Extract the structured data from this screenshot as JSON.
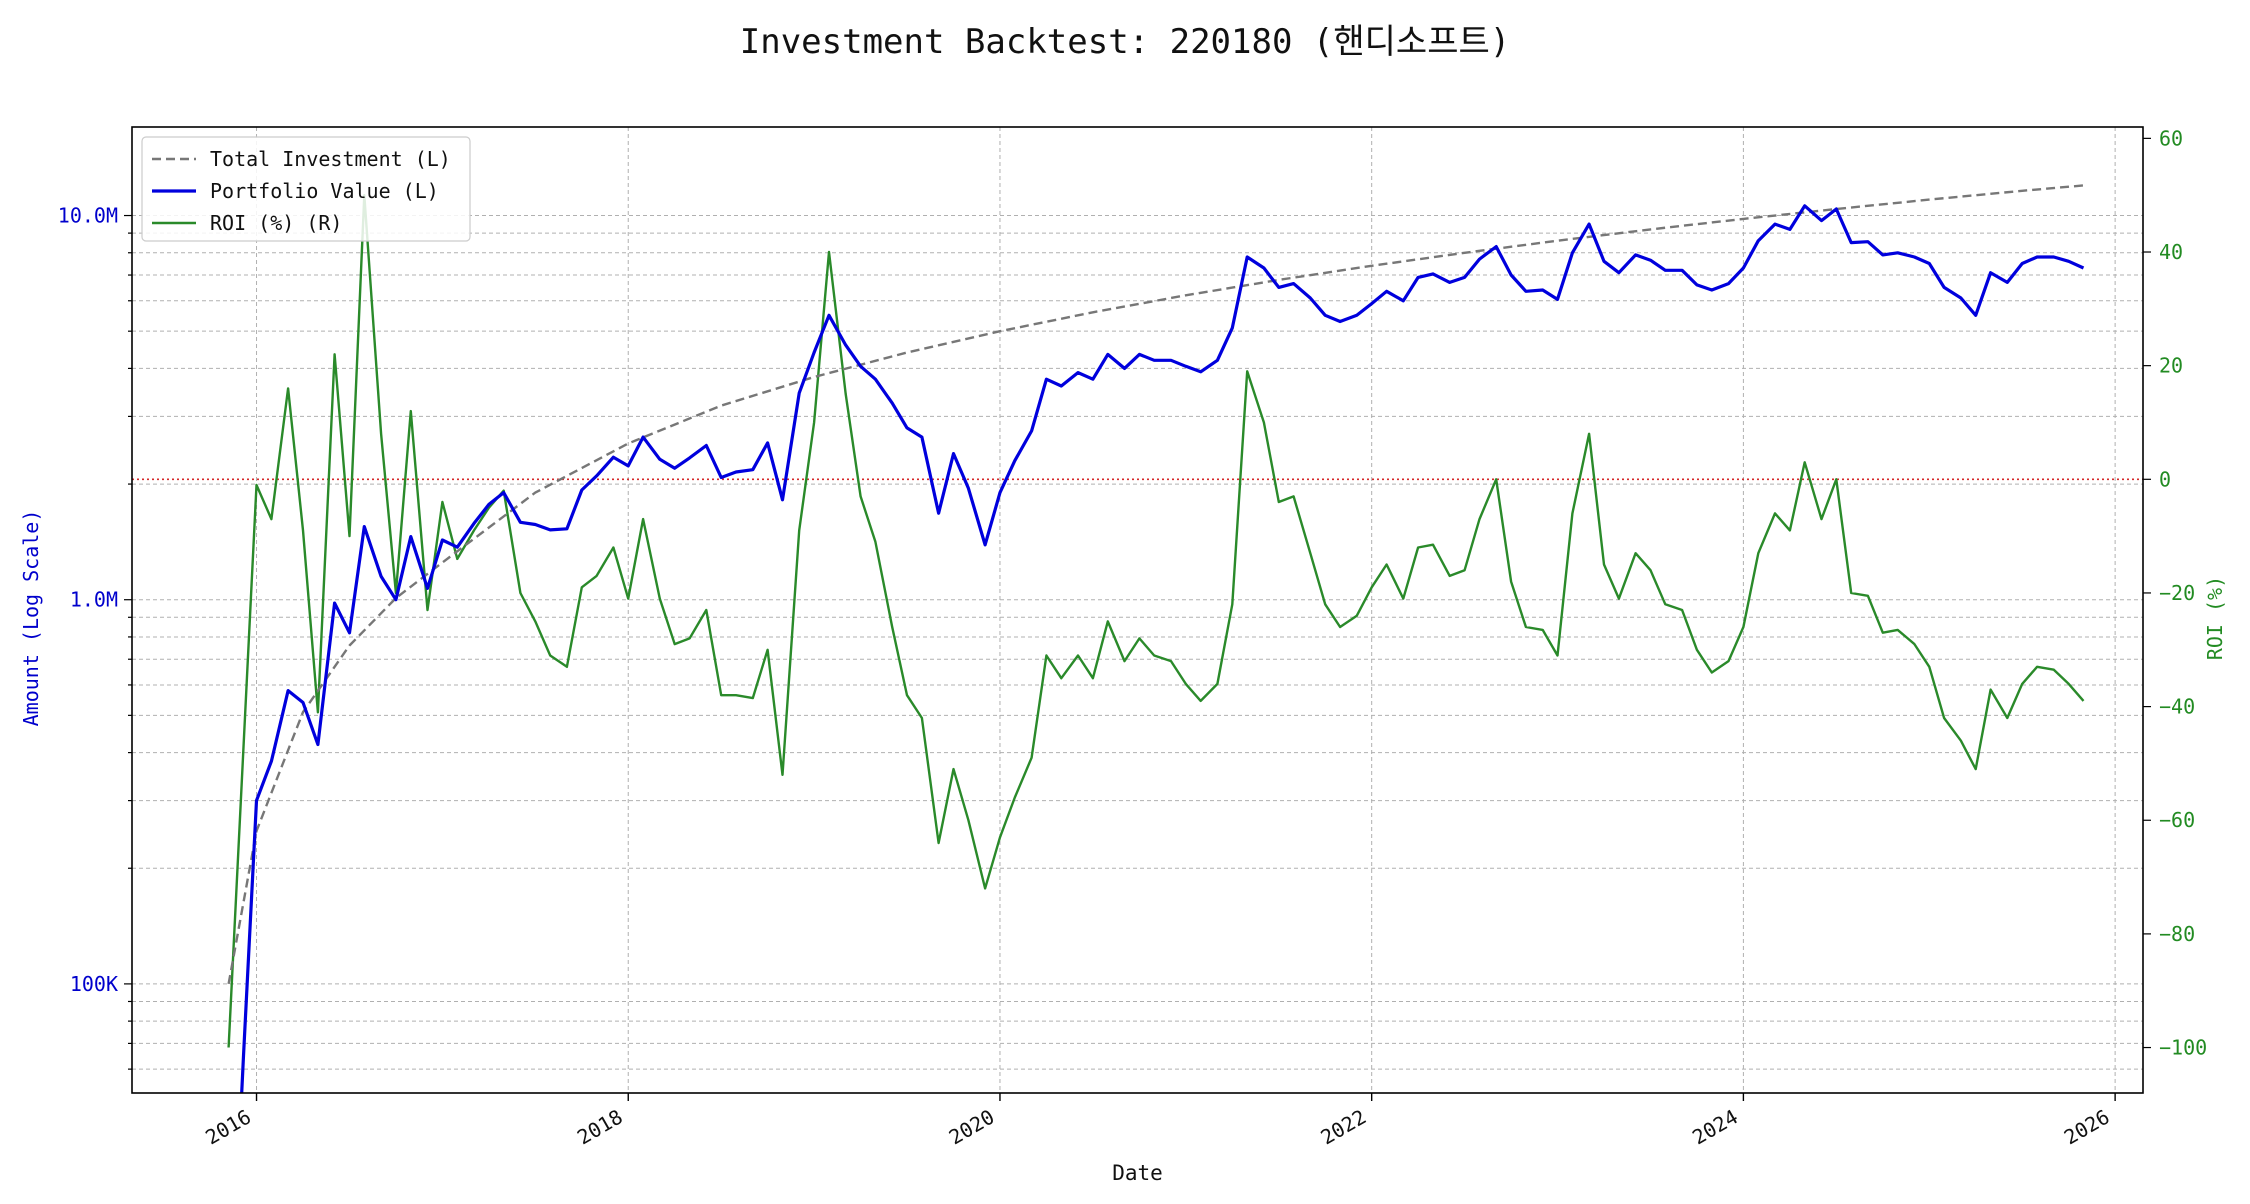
{
  "chart_data": {
    "type": "line",
    "title": "Investment Backtest: 220180 (핸디소프트)",
    "xlabel": "Date",
    "ylabel_left": "Amount (Log Scale)",
    "ylabel_right": "ROI (%)",
    "x_range": [
      2015.33,
      2026.15
    ],
    "xticks": [
      2016,
      2018,
      2020,
      2022,
      2024,
      2026
    ],
    "xtick_labels": [
      "2016",
      "2018",
      "2020",
      "2022",
      "2024",
      "2026"
    ],
    "left_axis": {
      "scale": "log",
      "ylim": [
        52000,
        17000000
      ],
      "ticks": [
        100000,
        1000000,
        10000000
      ],
      "tick_labels": [
        "100K",
        "1.0M",
        "10.0M"
      ],
      "color": "#0000cc"
    },
    "right_axis": {
      "scale": "linear",
      "ylim": [
        -108,
        62
      ],
      "ticks": [
        -100,
        -80,
        -60,
        -40,
        -20,
        0,
        20,
        40,
        60
      ],
      "tick_labels": [
        "−100",
        "−80",
        "−60",
        "−40",
        "−20",
        "0",
        "20",
        "40",
        "60"
      ],
      "color": "#228b22"
    },
    "grid": true,
    "legend_position": "top-left",
    "reference_line": {
      "axis": "right",
      "value": 0,
      "color": "#d62728",
      "style": "dotted"
    },
    "series": [
      {
        "name": "Total Investment (L)",
        "axis": "left",
        "color": "#777777",
        "style": "dashed",
        "x": [
          2015.85,
          2016.0,
          2016.25,
          2016.5,
          2016.75,
          2017.0,
          2017.5,
          2018.0,
          2018.5,
          2019.0,
          2019.5,
          2020.0,
          2020.5,
          2021.0,
          2021.5,
          2022.0,
          2022.5,
          2023.0,
          2023.5,
          2024.0,
          2024.5,
          2025.0,
          2025.5,
          2025.85
        ],
        "y": [
          100000,
          250000,
          510000,
          760000,
          1010000,
          1250000,
          1900000,
          2550000,
          3200000,
          3800000,
          4400000,
          5000000,
          5600000,
          6200000,
          6800000,
          7400000,
          8000000,
          8600000,
          9200000,
          9800000,
          10400000,
          11000000,
          11600000,
          12000000
        ]
      },
      {
        "name": "Portfolio Value (L)",
        "axis": "left",
        "color": "#0000dd",
        "style": "solid",
        "x": [
          2015.92,
          2015.93,
          2016.0,
          2016.08,
          2016.17,
          2016.25,
          2016.33,
          2016.42,
          2016.5,
          2016.58,
          2016.67,
          2016.75,
          2016.83,
          2016.92,
          2017.0,
          2017.08,
          2017.17,
          2017.25,
          2017.33,
          2017.42,
          2017.5,
          2017.58,
          2017.67,
          2017.75,
          2017.83,
          2017.92,
          2018.0,
          2018.08,
          2018.17,
          2018.25,
          2018.33,
          2018.42,
          2018.5,
          2018.58,
          2018.67,
          2018.75,
          2018.83,
          2018.92,
          2019.0,
          2019.08,
          2019.17,
          2019.25,
          2019.33,
          2019.42,
          2019.5,
          2019.58,
          2019.67,
          2019.75,
          2019.83,
          2019.92,
          2020.0,
          2020.08,
          2020.17,
          2020.25,
          2020.33,
          2020.42,
          2020.5,
          2020.58,
          2020.67,
          2020.75,
          2020.83,
          2020.92,
          2021.0,
          2021.08,
          2021.17,
          2021.25,
          2021.33,
          2021.42,
          2021.5,
          2021.58,
          2021.67,
          2021.75,
          2021.83,
          2021.92,
          2022.0,
          2022.08,
          2022.17,
          2022.25,
          2022.33,
          2022.42,
          2022.5,
          2022.58,
          2022.67,
          2022.75,
          2022.83,
          2022.92,
          2023.0,
          2023.08,
          2023.17,
          2023.25,
          2023.33,
          2023.42,
          2023.5,
          2023.58,
          2023.67,
          2023.75,
          2023.83,
          2023.92,
          2024.0,
          2024.08,
          2024.17,
          2024.25,
          2024.33,
          2024.42,
          2024.5,
          2024.58,
          2024.67,
          2024.75,
          2024.83,
          2024.92,
          2025.0,
          2025.08,
          2025.17,
          2025.25,
          2025.33,
          2025.42,
          2025.5,
          2025.58,
          2025.67,
          2025.75,
          2025.83
        ],
        "y": [
          52000,
          65000,
          300000,
          380000,
          580000,
          540000,
          420000,
          980000,
          820000,
          1550000,
          1150000,
          1000000,
          1460000,
          1070000,
          1430000,
          1370000,
          1580000,
          1770000,
          1900000,
          1590000,
          1570000,
          1520000,
          1530000,
          1930000,
          2100000,
          2350000,
          2230000,
          2650000,
          2320000,
          2200000,
          2340000,
          2520000,
          2080000,
          2150000,
          2180000,
          2560000,
          1820000,
          3450000,
          4400000,
          5500000,
          4600000,
          4050000,
          3750000,
          3250000,
          2800000,
          2650000,
          1680000,
          2400000,
          1950000,
          1390000,
          1900000,
          2300000,
          2750000,
          3750000,
          3600000,
          3900000,
          3750000,
          4350000,
          4000000,
          4350000,
          4200000,
          4200000,
          4050000,
          3920000,
          4200000,
          5100000,
          7800000,
          7300000,
          6500000,
          6650000,
          6100000,
          5500000,
          5300000,
          5500000,
          5900000,
          6350000,
          6000000,
          6900000,
          7050000,
          6700000,
          6900000,
          7700000,
          8300000,
          7000000,
          6350000,
          6400000,
          6050000,
          8000000,
          9500000,
          7600000,
          7100000,
          7900000,
          7650000,
          7200000,
          7200000,
          6600000,
          6400000,
          6650000,
          7300000,
          8600000,
          9500000,
          9200000,
          10600000,
          9700000,
          10400000,
          8500000,
          8550000,
          7900000,
          8000000,
          7800000,
          7500000,
          6500000,
          6100000,
          5500000,
          7100000,
          6700000,
          7500000,
          7800000,
          7800000,
          7600000,
          7300000
        ]
      },
      {
        "name": "ROI (%) (R)",
        "axis": "right",
        "color": "#2a8a2a",
        "style": "solid",
        "x": [
          2015.85,
          2016.0,
          2016.08,
          2016.17,
          2016.25,
          2016.33,
          2016.42,
          2016.5,
          2016.58,
          2016.67,
          2016.75,
          2016.83,
          2016.92,
          2017.0,
          2017.08,
          2017.17,
          2017.25,
          2017.33,
          2017.42,
          2017.5,
          2017.58,
          2017.67,
          2017.75,
          2017.83,
          2017.92,
          2018.0,
          2018.08,
          2018.17,
          2018.25,
          2018.33,
          2018.42,
          2018.5,
          2018.58,
          2018.67,
          2018.75,
          2018.83,
          2018.92,
          2019.0,
          2019.08,
          2019.17,
          2019.25,
          2019.33,
          2019.42,
          2019.5,
          2019.58,
          2019.67,
          2019.75,
          2019.83,
          2019.92,
          2020.0,
          2020.08,
          2020.17,
          2020.25,
          2020.33,
          2020.42,
          2020.5,
          2020.58,
          2020.67,
          2020.75,
          2020.83,
          2020.92,
          2021.0,
          2021.08,
          2021.17,
          2021.25,
          2021.33,
          2021.42,
          2021.5,
          2021.58,
          2021.67,
          2021.75,
          2021.83,
          2021.92,
          2022.0,
          2022.08,
          2022.17,
          2022.25,
          2022.33,
          2022.42,
          2022.5,
          2022.58,
          2022.67,
          2022.75,
          2022.83,
          2022.92,
          2023.0,
          2023.08,
          2023.17,
          2023.25,
          2023.33,
          2023.42,
          2023.5,
          2023.58,
          2023.67,
          2023.75,
          2023.83,
          2023.92,
          2024.0,
          2024.08,
          2024.17,
          2024.25,
          2024.33,
          2024.42,
          2024.5,
          2024.58,
          2024.67,
          2024.75,
          2024.83,
          2024.92,
          2025.0,
          2025.08,
          2025.17,
          2025.25,
          2025.33,
          2025.42,
          2025.5,
          2025.58,
          2025.67,
          2025.75,
          2025.83
        ],
        "y": [
          -100,
          -1,
          -7,
          16,
          -9,
          -41,
          22,
          -10,
          50,
          8,
          -20,
          12,
          -23,
          -4,
          -14,
          -9,
          -5,
          -2,
          -20,
          -25,
          -31,
          -33,
          -19,
          -17,
          -12,
          -21,
          -7,
          -21,
          -29,
          -28,
          -23,
          -38,
          -38,
          -38.5,
          -30,
          -52,
          -9,
          10,
          40,
          15,
          -3,
          -11,
          -26,
          -38,
          -42,
          -64,
          -51,
          -60,
          -72,
          -63,
          -56,
          -49,
          -31,
          -35,
          -31,
          -35,
          -25,
          -32,
          -28,
          -31,
          -32,
          -36,
          -39,
          -36,
          -22,
          19,
          10,
          -4,
          -3,
          -13,
          -22,
          -26,
          -24,
          -19,
          -15,
          -21,
          -12,
          -11.5,
          -17,
          -16,
          -7,
          0,
          -18,
          -26,
          -26.5,
          -31,
          -6,
          8,
          -15,
          -21,
          -13,
          -16,
          -22,
          -23,
          -30,
          -34,
          -32,
          -26,
          -13,
          -6,
          -9,
          3,
          -7,
          0,
          -20,
          -20.5,
          -27,
          -26.5,
          -29,
          -33,
          -42,
          -46,
          -51,
          -37,
          -42,
          -36,
          -33,
          -33.5,
          -36,
          -39
        ]
      }
    ]
  }
}
